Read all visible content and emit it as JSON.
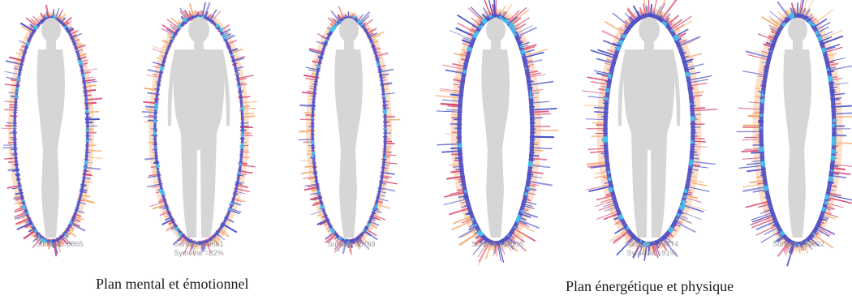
{
  "colors": {
    "silhouette": "#d6d6d6",
    "aura_outer": "#f4a86a",
    "aura_mid": "#d8456e",
    "aura_inner": "#4a4fc8",
    "aura_core": "#45c8f0"
  },
  "figures": [
    {
      "surface": "Surface =8865",
      "symmetry": ""
    },
    {
      "surface": "Surface = 9661",
      "symmetry": "Symétrie =82%"
    },
    {
      "surface": "Surface =8769",
      "symmetry": ""
    },
    {
      "surface": "Surface =14106",
      "symmetry": ""
    },
    {
      "surface": "Surface = 14374",
      "symmetry": "Symétrie =91%"
    },
    {
      "surface": "Surface =14692",
      "symmetry": ""
    }
  ],
  "groups": [
    {
      "caption": "Plan mental et émotionnel"
    },
    {
      "caption": "Plan énergétique et physique"
    }
  ]
}
